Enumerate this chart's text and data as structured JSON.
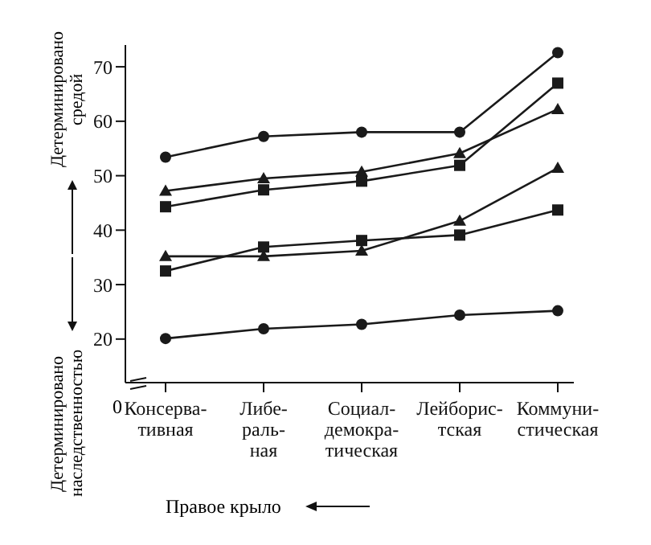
{
  "chart_data": {
    "type": "line",
    "categories": [
      "Консерва-\nтивная",
      "Либе-\nраль-\nная",
      "Социал-\nдемокра-\nтическая",
      "Лейборис-\nтская",
      "Коммуни-\nстическая"
    ],
    "series": [
      {
        "color": "#1a1a1a",
        "marker": "circle",
        "values": [
          53.4,
          57.2,
          58,
          58,
          72.6
        ]
      },
      {
        "color": "#1a1a1a",
        "marker": "triangle",
        "values": [
          47.2,
          49.5,
          50.7,
          54.1,
          62.2
        ]
      },
      {
        "color": "#1a1a1a",
        "marker": "square",
        "values": [
          44.3,
          47.4,
          49,
          51.9,
          67
        ]
      },
      {
        "color": "#1a1a1a",
        "marker": "triangle",
        "values": [
          35.2,
          35.2,
          36.2,
          41.7,
          51.4
        ]
      },
      {
        "color": "#1a1a1a",
        "marker": "square",
        "values": [
          32.5,
          36.9,
          38.1,
          39.1,
          43.7
        ]
      },
      {
        "color": "#1a1a1a",
        "marker": "circle",
        "values": [
          20.1,
          21.9,
          22.7,
          24.4,
          25.2
        ]
      }
    ],
    "ylim": [
      12,
      74
    ],
    "yticks": [
      20,
      30,
      40,
      50,
      60,
      70
    ],
    "annotations": [
      "Детерминировано средой",
      "Детерминировано наследственностью",
      "Правое крыло",
      "0"
    ]
  }
}
